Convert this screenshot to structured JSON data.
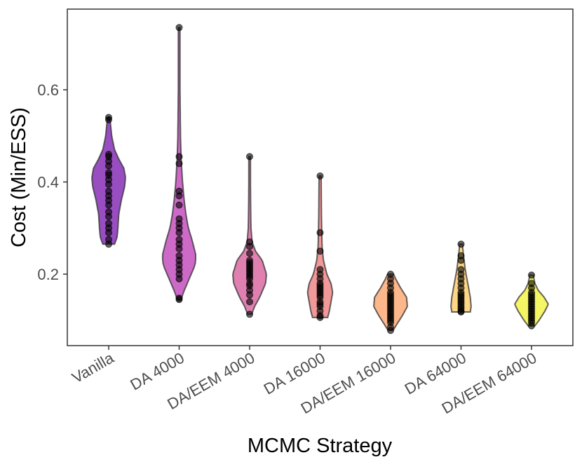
{
  "chart_data": {
    "type": "violin",
    "title": "",
    "xlabel": "MCMC Strategy",
    "ylabel": "Cost (Min/ESS)",
    "categories": [
      "Vanilla",
      "DA 4000",
      "DA/EEM 4000",
      "DA 16000",
      "DA/EEM 16000",
      "DA 64000",
      "DA/EEM 64000"
    ],
    "ylim": [
      0.045,
      0.775
    ],
    "yticks": [
      0.2,
      0.4,
      0.6
    ],
    "ytick_labels": [
      "0.2",
      "0.4",
      "0.6"
    ],
    "grid": false,
    "colors": [
      "#7E22B0",
      "#C043B8",
      "#D8609E",
      "#EE7F7F",
      "#FBA56E",
      "#FDCC68",
      "#F2F23F"
    ],
    "series": [
      {
        "name": "Vanilla",
        "min": 0.265,
        "max": 0.54,
        "points": [
          0.265,
          0.275,
          0.29,
          0.3,
          0.31,
          0.325,
          0.335,
          0.35,
          0.36,
          0.37,
          0.38,
          0.395,
          0.405,
          0.415,
          0.42,
          0.435,
          0.445,
          0.455,
          0.46,
          0.535,
          0.54
        ],
        "density": [
          [
            0.265,
            0.35
          ],
          [
            0.28,
            0.5
          ],
          [
            0.3,
            0.55
          ],
          [
            0.33,
            0.6
          ],
          [
            0.36,
            0.75
          ],
          [
            0.39,
            0.95
          ],
          [
            0.41,
            1.0
          ],
          [
            0.43,
            0.9
          ],
          [
            0.45,
            0.6
          ],
          [
            0.47,
            0.35
          ],
          [
            0.5,
            0.18
          ],
          [
            0.53,
            0.1
          ],
          [
            0.54,
            0.07
          ]
        ]
      },
      {
        "name": "DA 4000",
        "min": 0.145,
        "max": 0.735,
        "points": [
          0.145,
          0.148,
          0.19,
          0.2,
          0.21,
          0.22,
          0.23,
          0.24,
          0.255,
          0.265,
          0.275,
          0.29,
          0.3,
          0.31,
          0.32,
          0.35,
          0.37,
          0.38,
          0.44,
          0.455,
          0.735
        ],
        "density": [
          [
            0.145,
            0.12
          ],
          [
            0.16,
            0.25
          ],
          [
            0.19,
            0.6
          ],
          [
            0.22,
            0.95
          ],
          [
            0.24,
            1.0
          ],
          [
            0.27,
            0.8
          ],
          [
            0.3,
            0.55
          ],
          [
            0.33,
            0.4
          ],
          [
            0.36,
            0.3
          ],
          [
            0.4,
            0.2
          ],
          [
            0.45,
            0.12
          ],
          [
            0.5,
            0.08
          ],
          [
            0.6,
            0.05
          ],
          [
            0.735,
            0.04
          ]
        ]
      },
      {
        "name": "DA/EEM 4000",
        "min": 0.113,
        "max": 0.455,
        "points": [
          0.113,
          0.14,
          0.155,
          0.165,
          0.175,
          0.18,
          0.19,
          0.195,
          0.2,
          0.205,
          0.21,
          0.215,
          0.22,
          0.225,
          0.23,
          0.245,
          0.26,
          0.27,
          0.455
        ],
        "density": [
          [
            0.113,
            0.12
          ],
          [
            0.13,
            0.3
          ],
          [
            0.15,
            0.6
          ],
          [
            0.18,
            0.95
          ],
          [
            0.2,
            1.0
          ],
          [
            0.23,
            0.75
          ],
          [
            0.25,
            0.35
          ],
          [
            0.27,
            0.15
          ],
          [
            0.3,
            0.08
          ],
          [
            0.35,
            0.06
          ],
          [
            0.4,
            0.05
          ],
          [
            0.455,
            0.05
          ]
        ]
      },
      {
        "name": "DA 16000",
        "min": 0.106,
        "max": 0.413,
        "points": [
          0.106,
          0.11,
          0.12,
          0.13,
          0.135,
          0.14,
          0.15,
          0.155,
          0.16,
          0.165,
          0.17,
          0.175,
          0.18,
          0.19,
          0.2,
          0.21,
          0.25,
          0.29,
          0.413
        ],
        "density": [
          [
            0.106,
            0.45
          ],
          [
            0.12,
            0.55
          ],
          [
            0.14,
            0.65
          ],
          [
            0.16,
            0.75
          ],
          [
            0.18,
            0.65
          ],
          [
            0.2,
            0.4
          ],
          [
            0.23,
            0.2
          ],
          [
            0.26,
            0.12
          ],
          [
            0.29,
            0.1
          ],
          [
            0.33,
            0.08
          ],
          [
            0.38,
            0.07
          ],
          [
            0.413,
            0.06
          ]
        ]
      },
      {
        "name": "DA/EEM 16000",
        "min": 0.078,
        "max": 0.2,
        "points": [
          0.078,
          0.085,
          0.095,
          0.1,
          0.105,
          0.11,
          0.115,
          0.12,
          0.125,
          0.13,
          0.135,
          0.14,
          0.145,
          0.15,
          0.155,
          0.16,
          0.17,
          0.18,
          0.19,
          0.2
        ],
        "density": [
          [
            0.078,
            0.15
          ],
          [
            0.09,
            0.35
          ],
          [
            0.11,
            0.7
          ],
          [
            0.13,
            1.0
          ],
          [
            0.15,
            0.95
          ],
          [
            0.17,
            0.6
          ],
          [
            0.19,
            0.3
          ],
          [
            0.2,
            0.18
          ]
        ]
      },
      {
        "name": "DA 64000",
        "min": 0.118,
        "max": 0.265,
        "points": [
          0.118,
          0.12,
          0.125,
          0.13,
          0.135,
          0.14,
          0.145,
          0.15,
          0.155,
          0.16,
          0.17,
          0.18,
          0.19,
          0.2,
          0.21,
          0.23,
          0.24,
          0.265
        ],
        "density": [
          [
            0.118,
            0.55
          ],
          [
            0.13,
            0.6
          ],
          [
            0.15,
            0.55
          ],
          [
            0.17,
            0.45
          ],
          [
            0.19,
            0.35
          ],
          [
            0.21,
            0.25
          ],
          [
            0.23,
            0.18
          ],
          [
            0.25,
            0.12
          ],
          [
            0.265,
            0.08
          ]
        ]
      },
      {
        "name": "DA/EEM 64000",
        "min": 0.088,
        "max": 0.198,
        "points": [
          0.088,
          0.095,
          0.1,
          0.105,
          0.11,
          0.115,
          0.12,
          0.125,
          0.13,
          0.135,
          0.14,
          0.145,
          0.15,
          0.155,
          0.16,
          0.17,
          0.18,
          0.198
        ],
        "density": [
          [
            0.088,
            0.2
          ],
          [
            0.1,
            0.45
          ],
          [
            0.12,
            0.8
          ],
          [
            0.135,
            1.0
          ],
          [
            0.15,
            0.75
          ],
          [
            0.165,
            0.4
          ],
          [
            0.18,
            0.2
          ],
          [
            0.198,
            0.1
          ]
        ]
      }
    ]
  }
}
